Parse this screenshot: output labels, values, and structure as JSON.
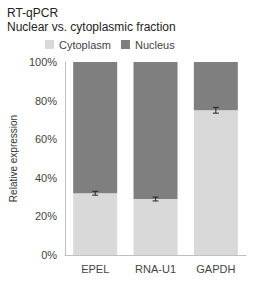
{
  "chart_data": {
    "type": "bar",
    "title": "RT-qPCR",
    "subtitle": "Nuclear vs. cytoplasmic fraction",
    "y_label": "Relative expression",
    "categories": [
      "EPEL",
      "RNA-U1",
      "GAPDH"
    ],
    "stacked": true,
    "series": [
      {
        "name": "Cytoplasm",
        "color": "#d9d9d9",
        "values": [
          32,
          29,
          75
        ],
        "errors": [
          1,
          1,
          1.5
        ]
      },
      {
        "name": "Nucleus",
        "color": "#7f7f7f",
        "values": [
          68,
          71,
          25
        ]
      }
    ],
    "ylim": [
      0,
      100
    ],
    "yticks": [
      {
        "value": 0,
        "label": "0%"
      },
      {
        "value": 20,
        "label": "20%"
      },
      {
        "value": 40,
        "label": "40%"
      },
      {
        "value": 60,
        "label": "60%"
      },
      {
        "value": 80,
        "label": "80%"
      },
      {
        "value": 100,
        "label": "100%"
      }
    ],
    "legend": "top",
    "grid": false
  }
}
